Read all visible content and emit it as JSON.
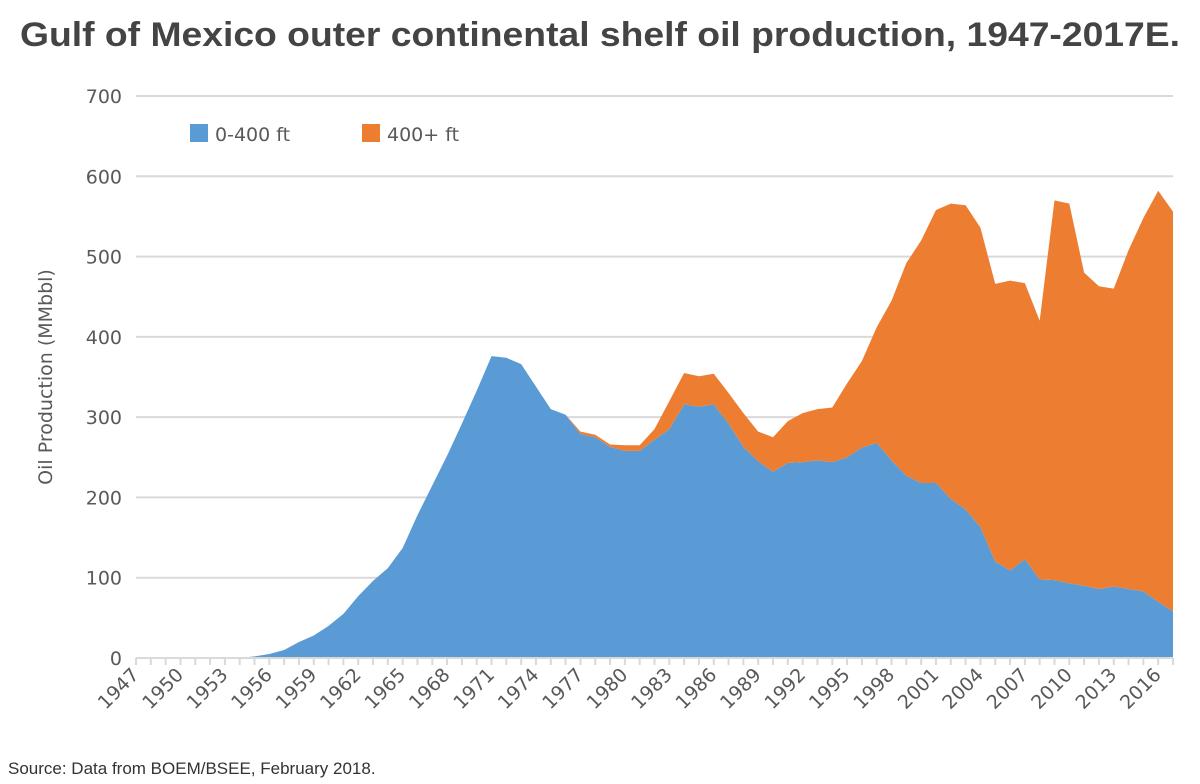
{
  "chart_data": {
    "type": "area",
    "stacked": true,
    "title": "Gulf of Mexico outer continental shelf oil production, 1947-2017E.",
    "ylabel": "Oil Production  (MMbbl)",
    "xlabel": "",
    "source": "Source: Data from BOEM/BSEE, February 2018.",
    "ylim": [
      0,
      700
    ],
    "yticks": [
      0,
      100,
      200,
      300,
      400,
      500,
      600,
      700
    ],
    "xlim": [
      1947,
      2017
    ],
    "xtick_labels": [
      "1947",
      "1950",
      "1953",
      "1956",
      "1959",
      "1962",
      "1965",
      "1968",
      "1971",
      "1974",
      "1977",
      "1980",
      "1983",
      "1986",
      "1989",
      "1992",
      "1995",
      "1998",
      "2001",
      "2004",
      "2007",
      "2010",
      "2013",
      "2016"
    ],
    "grid": true,
    "legend_position": "top-left",
    "x": [
      1947,
      1948,
      1949,
      1950,
      1951,
      1952,
      1953,
      1954,
      1955,
      1956,
      1957,
      1958,
      1959,
      1960,
      1961,
      1962,
      1963,
      1964,
      1965,
      1966,
      1967,
      1968,
      1969,
      1970,
      1971,
      1972,
      1973,
      1974,
      1975,
      1976,
      1977,
      1978,
      1979,
      1980,
      1981,
      1982,
      1983,
      1984,
      1985,
      1986,
      1987,
      1988,
      1989,
      1990,
      1991,
      1992,
      1993,
      1994,
      1995,
      1996,
      1997,
      1998,
      1999,
      2000,
      2001,
      2002,
      2003,
      2004,
      2005,
      2006,
      2007,
      2008,
      2009,
      2010,
      2011,
      2012,
      2013,
      2014,
      2015,
      2016,
      2017
    ],
    "series": [
      {
        "name": "0-400 ft",
        "color": "#5b9bd5",
        "values": [
          0,
          0,
          0,
          0,
          0,
          0,
          0,
          0,
          2,
          5,
          10,
          20,
          28,
          40,
          55,
          77,
          96,
          112,
          137,
          178,
          215,
          252,
          292,
          333,
          376,
          374,
          366,
          338,
          310,
          303,
          279,
          275,
          263,
          258,
          258,
          272,
          285,
          316,
          313,
          316,
          292,
          263,
          245,
          232,
          243,
          244,
          246,
          244,
          250,
          262,
          268,
          246,
          227,
          218,
          218,
          198,
          185,
          163,
          120,
          109,
          123,
          98,
          97,
          93,
          90,
          86,
          89,
          86,
          83,
          70,
          58
        ]
      },
      {
        "name": "400+ ft",
        "color": "#ed7d31",
        "values": [
          0,
          0,
          0,
          0,
          0,
          0,
          0,
          0,
          0,
          0,
          0,
          0,
          0,
          0,
          0,
          0,
          0,
          0,
          0,
          0,
          0,
          0,
          0,
          0,
          0,
          0,
          0,
          0,
          0,
          0,
          3,
          3,
          3,
          7,
          7,
          13,
          35,
          39,
          38,
          38,
          38,
          42,
          37,
          43,
          52,
          61,
          64,
          68,
          92,
          108,
          144,
          199,
          265,
          302,
          340,
          368,
          379,
          373,
          346,
          361,
          344,
          322,
          473,
          473,
          390,
          377,
          371,
          422,
          465,
          512,
          498
        ]
      }
    ]
  }
}
